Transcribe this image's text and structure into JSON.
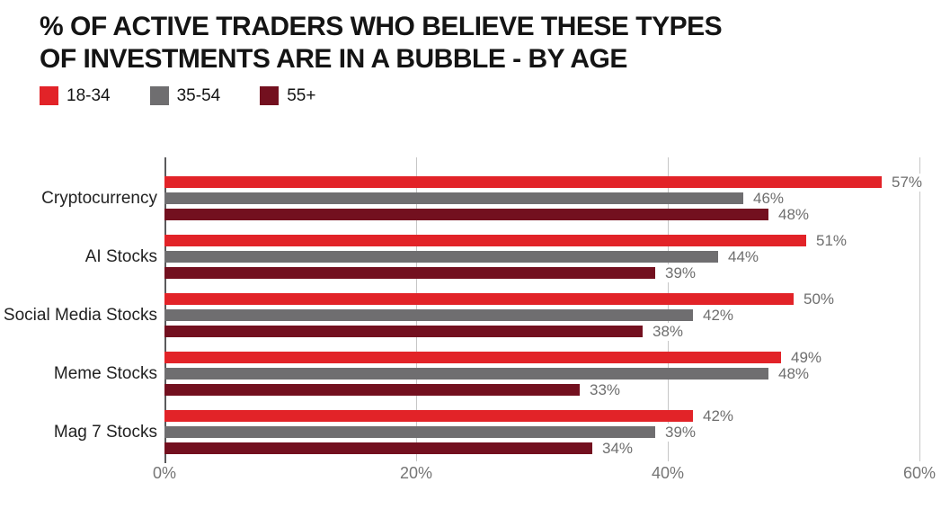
{
  "title": "% OF ACTIVE TRADERS WHO BELIEVE THESE TYPES\nOF INVESTMENTS ARE IN A BUBBLE - BY AGE",
  "legend": {
    "items": [
      {
        "label": "18-34",
        "color": "#E22328"
      },
      {
        "label": "35-54",
        "color": "#6F6E70"
      },
      {
        "label": "55+",
        "color": "#73101F"
      }
    ]
  },
  "chart_data": {
    "type": "bar",
    "orientation": "horizontal",
    "title": "% OF ACTIVE TRADERS WHO BELIEVE THESE TYPES OF INVESTMENTS ARE IN A BUBBLE - BY AGE",
    "categories": [
      "Cryptocurrency",
      "AI Stocks",
      "Social Media Stocks",
      "Meme Stocks",
      "Mag 7 Stocks"
    ],
    "series": [
      {
        "name": "18-34",
        "color": "#E22328",
        "values": [
          57,
          51,
          50,
          49,
          42
        ]
      },
      {
        "name": "35-54",
        "color": "#6F6E70",
        "values": [
          46,
          44,
          42,
          48,
          39
        ]
      },
      {
        "name": "55+",
        "color": "#73101F",
        "values": [
          48,
          39,
          38,
          33,
          34
        ]
      }
    ],
    "value_suffix": "%",
    "xlim": [
      0,
      60
    ],
    "xtick_values": [
      0,
      20,
      40,
      60
    ],
    "xticks": [
      "0%",
      "20%",
      "40%",
      "60%"
    ],
    "grid": true,
    "legend_position": "top-left",
    "colors": {
      "grid": "#C6C6C6",
      "axis": "#5A5A5C",
      "value_label": "#6E6E6E",
      "tick_label": "#757575",
      "category_label": "#222222",
      "title": "#141414"
    }
  }
}
